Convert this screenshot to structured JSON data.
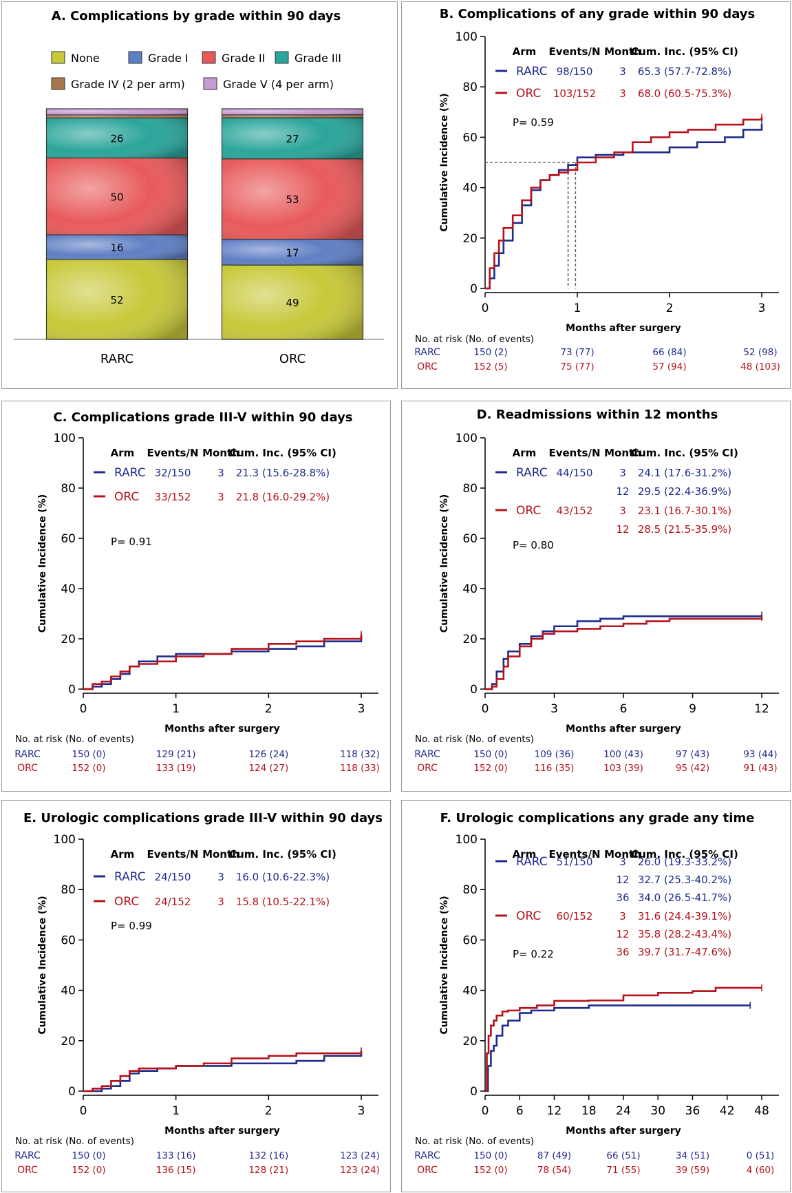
{
  "colors": {
    "rarc": "#1f2a8c",
    "orc": "#b5121b",
    "axis": "#000000",
    "ref": "#666666"
  },
  "chart_data": [
    {
      "id": "A",
      "type": "bar",
      "stacked": true,
      "title": "A. Complications by grade within 90 days",
      "categories": [
        "RARC",
        "ORC"
      ],
      "legend": [
        {
          "name": "None",
          "color": "#c8c83a"
        },
        {
          "name": "Grade I",
          "color": "#5f7fc4"
        },
        {
          "name": "Grade II",
          "color": "#e85a5a"
        },
        {
          "name": "Grade III",
          "color": "#2aa59a"
        },
        {
          "name": "Grade IV (2 per arm)",
          "color": "#a8784a"
        },
        {
          "name": "Grade V (4 per arm)",
          "color": "#c89ad6"
        }
      ],
      "series": [
        {
          "name": "None",
          "values": [
            52,
            49
          ],
          "labels": [
            "52",
            "49"
          ]
        },
        {
          "name": "Grade I",
          "values": [
            16,
            17
          ],
          "labels": [
            "16",
            "17"
          ]
        },
        {
          "name": "Grade II",
          "values": [
            50,
            53
          ],
          "labels": [
            "50",
            "53"
          ]
        },
        {
          "name": "Grade III",
          "values": [
            26,
            27
          ],
          "labels": [
            "26",
            "27"
          ]
        },
        {
          "name": "Grade IV (2 per arm)",
          "values": [
            2,
            2
          ],
          "labels": [
            "",
            ""
          ]
        },
        {
          "name": "Grade V (4 per arm)",
          "values": [
            4,
            4
          ],
          "labels": [
            "",
            ""
          ]
        }
      ],
      "totals": [
        150,
        152
      ]
    },
    {
      "id": "B",
      "type": "line",
      "title": "B. Complications of any grade within 90 days",
      "xlabel": "Months after surgery",
      "ylabel": "Cumulative Incidence (%)",
      "xlim": [
        0,
        3
      ],
      "ylim": [
        0,
        100
      ],
      "xticks": [
        0,
        1,
        2,
        3
      ],
      "yticks": [
        0,
        20,
        40,
        60,
        80,
        100
      ],
      "headers": [
        "Arm",
        "Events/N",
        "Month",
        "Cum. Inc. (95% CI)"
      ],
      "rows": [
        {
          "arm": "RARC",
          "events": "98/150",
          "estimates": [
            {
              "month": "3",
              "ci": "65.3 (57.7-72.8%)"
            }
          ]
        },
        {
          "arm": "ORC",
          "events": "103/152",
          "estimates": [
            {
              "month": "3",
              "ci": "68.0 (60.5-75.3%)"
            }
          ]
        }
      ],
      "pvalue": "P= 0.59",
      "median_lines": {
        "y": 50,
        "x": [
          0.9,
          0.98
        ]
      },
      "series": [
        {
          "name": "RARC",
          "x": [
            0,
            0.05,
            0.1,
            0.15,
            0.2,
            0.3,
            0.4,
            0.5,
            0.6,
            0.7,
            0.8,
            0.9,
            1.0,
            1.2,
            1.5,
            1.8,
            2.0,
            2.3,
            2.6,
            2.8,
            3.0
          ],
          "y": [
            0,
            4,
            9,
            14,
            19,
            26,
            33,
            39,
            43,
            45,
            47,
            49,
            52,
            53,
            54,
            54,
            56,
            58,
            60,
            63,
            65.3
          ]
        },
        {
          "name": "ORC",
          "x": [
            0,
            0.05,
            0.1,
            0.15,
            0.2,
            0.3,
            0.4,
            0.5,
            0.6,
            0.7,
            0.8,
            0.9,
            1.0,
            1.2,
            1.4,
            1.6,
            1.8,
            2.0,
            2.2,
            2.5,
            2.8,
            3.0
          ],
          "y": [
            0,
            8,
            14,
            19,
            24,
            29,
            35,
            40,
            43,
            45,
            46,
            47,
            50,
            52,
            54,
            58,
            60,
            62,
            63,
            65,
            67,
            68.0
          ]
        }
      ],
      "risk_title": "No. at risk (No. of events)",
      "risk_x": [
        0,
        1,
        2,
        3
      ],
      "risk": [
        [
          "150 (2)",
          "73 (77)",
          "66 (84)",
          "52 (98)"
        ],
        [
          "152 (5)",
          "75 (77)",
          "57 (94)",
          "48 (103)"
        ]
      ]
    },
    {
      "id": "C",
      "type": "line",
      "title": "C. Complications grade III-V within 90 days",
      "xlabel": "Months after surgery",
      "ylabel": "Cumulative Incidence (%)",
      "xlim": [
        0,
        3
      ],
      "ylim": [
        0,
        100
      ],
      "xticks": [
        0,
        1,
        2,
        3
      ],
      "yticks": [
        0,
        20,
        40,
        60,
        80,
        100
      ],
      "headers": [
        "Arm",
        "Events/N",
        "Month",
        "Cum. Inc. (95% CI)"
      ],
      "rows": [
        {
          "arm": "RARC",
          "events": "32/150",
          "estimates": [
            {
              "month": "3",
              "ci": "21.3 (15.6-28.8%)"
            }
          ]
        },
        {
          "arm": "ORC",
          "events": "33/152",
          "estimates": [
            {
              "month": "3",
              "ci": "21.8 (16.0-29.2%)"
            }
          ]
        }
      ],
      "pvalue": "P= 0.91",
      "series": [
        {
          "name": "RARC",
          "x": [
            0,
            0.1,
            0.2,
            0.3,
            0.4,
            0.5,
            0.6,
            0.8,
            1.0,
            1.3,
            1.6,
            2.0,
            2.3,
            2.6,
            3.0
          ],
          "y": [
            0,
            1,
            2,
            4,
            6,
            9,
            11,
            13,
            14,
            14,
            15,
            16,
            17,
            19,
            21.3
          ]
        },
        {
          "name": "ORC",
          "x": [
            0,
            0.1,
            0.2,
            0.3,
            0.4,
            0.5,
            0.6,
            0.8,
            1.0,
            1.3,
            1.6,
            2.0,
            2.3,
            2.6,
            3.0
          ],
          "y": [
            0,
            2,
            3,
            5,
            7,
            9,
            10,
            11,
            13,
            14,
            16,
            18,
            19,
            20,
            21.8
          ]
        }
      ],
      "risk_title": "No. at risk (No. of events)",
      "risk_x": [
        0,
        1,
        2,
        3
      ],
      "risk": [
        [
          "150 (0)",
          "129 (21)",
          "126 (24)",
          "118 (32)"
        ],
        [
          "152 (0)",
          "133 (19)",
          "124 (27)",
          "118 (33)"
        ]
      ]
    },
    {
      "id": "D",
      "type": "line",
      "title": "D. Readmissions within 12 months",
      "xlabel": "Months after surgery",
      "ylabel": "Cumulative Incidence (%)",
      "xlim": [
        0,
        12
      ],
      "ylim": [
        0,
        100
      ],
      "xticks": [
        0,
        3,
        6,
        9,
        12
      ],
      "yticks": [
        0,
        20,
        40,
        60,
        80,
        100
      ],
      "headers": [
        "Arm",
        "Events/N",
        "Month",
        "Cum. Inc. (95% CI)"
      ],
      "rows": [
        {
          "arm": "RARC",
          "events": "44/150",
          "estimates": [
            {
              "month": "3",
              "ci": "24.1 (17.6-31.2%)"
            },
            {
              "month": "12",
              "ci": "29.5 (22.4-36.9%)"
            }
          ]
        },
        {
          "arm": "ORC",
          "events": "43/152",
          "estimates": [
            {
              "month": "3",
              "ci": "23.1 (16.7-30.1%)"
            },
            {
              "month": "12",
              "ci": "28.5 (21.5-35.9%)"
            }
          ]
        }
      ],
      "pvalue": "P= 0.80",
      "series": [
        {
          "name": "RARC",
          "x": [
            0,
            0.3,
            0.5,
            0.8,
            1.0,
            1.5,
            2.0,
            2.5,
            3.0,
            4.0,
            5.0,
            6.0,
            8.0,
            10.0,
            12.0
          ],
          "y": [
            0,
            2,
            7,
            12,
            15,
            18,
            21,
            23,
            25,
            27,
            28,
            29,
            29,
            29,
            29.5
          ]
        },
        {
          "name": "ORC",
          "x": [
            0,
            0.3,
            0.5,
            0.8,
            1.0,
            1.5,
            2.0,
            2.5,
            3.0,
            4.0,
            5.0,
            6.0,
            7.0,
            8.0,
            10.0,
            12.0
          ],
          "y": [
            0,
            1,
            4,
            9,
            13,
            17,
            20,
            22,
            23,
            24,
            25,
            26,
            27,
            28,
            28,
            28.5
          ]
        }
      ],
      "risk_title": "No. at risk (No. of events)",
      "risk_x": [
        0,
        3,
        6,
        9,
        12
      ],
      "risk": [
        [
          "150 (0)",
          "109 (36)",
          "100 (43)",
          "97 (43)",
          "93 (44)"
        ],
        [
          "152 (0)",
          "116 (35)",
          "103 (39)",
          "95 (42)",
          "91 (43)"
        ]
      ]
    },
    {
      "id": "E",
      "type": "line",
      "title": "E. Urologic complications grade III-V within 90 days",
      "xlabel": "Months after surgery",
      "ylabel": "Cumulative Incidence (%)",
      "xlim": [
        0,
        3
      ],
      "ylim": [
        0,
        100
      ],
      "xticks": [
        0,
        1,
        2,
        3
      ],
      "yticks": [
        0,
        20,
        40,
        60,
        80,
        100
      ],
      "headers": [
        "Arm",
        "Events/N",
        "Month",
        "Cum. Inc. (95% CI)"
      ],
      "rows": [
        {
          "arm": "RARC",
          "events": "24/150",
          "estimates": [
            {
              "month": "3",
              "ci": "16.0 (10.6-22.3%)"
            }
          ]
        },
        {
          "arm": "ORC",
          "events": "24/152",
          "estimates": [
            {
              "month": "3",
              "ci": "15.8 (10.5-22.1%)"
            }
          ]
        }
      ],
      "pvalue": "P= 0.99",
      "series": [
        {
          "name": "RARC",
          "x": [
            0,
            0.2,
            0.3,
            0.4,
            0.5,
            0.6,
            0.8,
            1.0,
            1.3,
            1.6,
            2.0,
            2.3,
            2.6,
            3.0
          ],
          "y": [
            0,
            1,
            2,
            4,
            7,
            8,
            9,
            10,
            10,
            11,
            11,
            12,
            14,
            16.0
          ]
        },
        {
          "name": "ORC",
          "x": [
            0,
            0.1,
            0.2,
            0.3,
            0.4,
            0.5,
            0.6,
            0.8,
            1.0,
            1.3,
            1.6,
            2.0,
            2.3,
            2.6,
            3.0
          ],
          "y": [
            0,
            1,
            2,
            4,
            6,
            8,
            9,
            9,
            10,
            11,
            13,
            14,
            15,
            15,
            15.8
          ]
        }
      ],
      "risk_title": "No. at risk (No. of events)",
      "risk_x": [
        0,
        1,
        2,
        3
      ],
      "risk": [
        [
          "150 (0)",
          "133 (16)",
          "132 (16)",
          "123 (24)"
        ],
        [
          "152 (0)",
          "136 (15)",
          "128 (21)",
          "123 (24)"
        ]
      ]
    },
    {
      "id": "F",
      "type": "line",
      "title": "F. Urologic complications any grade any time",
      "xlabel": "Months after surgery",
      "ylabel": "Cumulative Incidence (%)",
      "xlim": [
        0,
        48
      ],
      "ylim": [
        0,
        100
      ],
      "xticks": [
        0,
        6,
        12,
        18,
        24,
        30,
        36,
        42,
        48
      ],
      "yticks": [
        0,
        20,
        40,
        60,
        80,
        100
      ],
      "headers": [
        "Arm",
        "Events/N",
        "Month",
        "Cum. Inc. (95% CI)"
      ],
      "rows": [
        {
          "arm": "RARC",
          "events": "51/150",
          "estimates": [
            {
              "month": "3",
              "ci": "26.0 (19.3-33.2%)"
            },
            {
              "month": "12",
              "ci": "32.7 (25.3-40.2%)"
            },
            {
              "month": "36",
              "ci": "34.0 (26.5-41.7%)"
            }
          ]
        },
        {
          "arm": "ORC",
          "events": "60/152",
          "estimates": [
            {
              "month": "3",
              "ci": "31.6 (24.4-39.1%)"
            },
            {
              "month": "12",
              "ci": "35.8 (28.2-43.4%)"
            },
            {
              "month": "36",
              "ci": "39.7 (31.7-47.6%)"
            }
          ]
        }
      ],
      "pvalue": "P= 0.22",
      "series": [
        {
          "name": "RARC",
          "x": [
            0,
            0.5,
            1,
            1.5,
            2,
            3,
            4,
            6,
            8,
            10,
            12,
            18,
            24,
            30,
            36,
            42,
            46
          ],
          "y": [
            0,
            10,
            16,
            18,
            22,
            26,
            28,
            31,
            32,
            32,
            33,
            34,
            34,
            34,
            34,
            34,
            34
          ]
        },
        {
          "name": "ORC",
          "x": [
            0,
            0.3,
            0.6,
            1,
            1.5,
            2,
            3,
            4,
            6,
            9,
            12,
            18,
            24,
            30,
            36,
            40,
            48
          ],
          "y": [
            0,
            15,
            22,
            26,
            28,
            30,
            31.6,
            32,
            33,
            34,
            35.8,
            36,
            38,
            39,
            39.7,
            41,
            41
          ]
        }
      ],
      "risk_title": "No. at risk (No. of events)",
      "risk_x": [
        0,
        12,
        24,
        36,
        48
      ],
      "risk": [
        [
          "150 (0)",
          "87 (49)",
          "66 (51)",
          "34 (51)",
          "0 (51)"
        ],
        [
          "152 (0)",
          "78 (54)",
          "71 (55)",
          "39 (59)",
          "4 (60)"
        ]
      ]
    }
  ]
}
